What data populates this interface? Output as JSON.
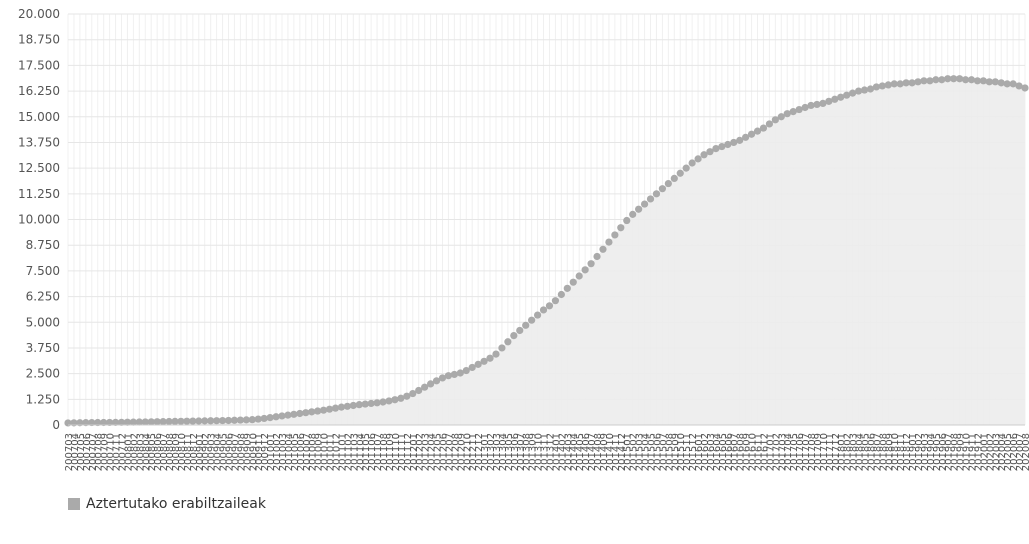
{
  "chart_data": {
    "type": "area",
    "categories": [
      "200703",
      "200704",
      "200705",
      "200706",
      "200707",
      "200708",
      "200709",
      "200710",
      "200711",
      "200712",
      "200801",
      "200802",
      "200803",
      "200804",
      "200805",
      "200806",
      "200807",
      "200808",
      "200809",
      "200810",
      "200811",
      "200812",
      "200901",
      "200902",
      "200903",
      "200904",
      "200905",
      "200906",
      "200907",
      "200908",
      "200909",
      "200910",
      "200911",
      "200912",
      "201001",
      "201002",
      "201003",
      "201004",
      "201005",
      "201006",
      "201007",
      "201008",
      "201009",
      "201010",
      "201011",
      "201012",
      "201101",
      "201102",
      "201103",
      "201104",
      "201105",
      "201106",
      "201107",
      "201108",
      "201109",
      "201110",
      "201111",
      "201112",
      "201201",
      "201202",
      "201203",
      "201204",
      "201205",
      "201206",
      "201207",
      "201208",
      "201209",
      "201210",
      "201211",
      "201212",
      "201301",
      "201302",
      "201303",
      "201304",
      "201305",
      "201306",
      "201307",
      "201308",
      "201309",
      "201310",
      "201311",
      "201312",
      "201401",
      "201402",
      "201403",
      "201404",
      "201405",
      "201406",
      "201407",
      "201408",
      "201409",
      "201410",
      "201411",
      "201412",
      "201501",
      "201502",
      "201503",
      "201504",
      "201505",
      "201506",
      "201507",
      "201508",
      "201509",
      "201510",
      "201511",
      "201512",
      "201601",
      "201602",
      "201603",
      "201604",
      "201605",
      "201606",
      "201607",
      "201608",
      "201609",
      "201610",
      "201611",
      "201612",
      "201701",
      "201702",
      "201703",
      "201704",
      "201705",
      "201706",
      "201707",
      "201708",
      "201709",
      "201710",
      "201711",
      "201712",
      "201801",
      "201802",
      "201803",
      "201804",
      "201805",
      "201806",
      "201807",
      "201808",
      "201809",
      "201810",
      "201811",
      "201812",
      "201901",
      "201902",
      "201903",
      "201904",
      "201905",
      "201906",
      "201907",
      "201908",
      "201909",
      "201910",
      "201911",
      "201912",
      "202001",
      "202002",
      "202003",
      "202004",
      "202005",
      "202006",
      "202007",
      "202008"
    ],
    "series": [
      {
        "name": "Aztertutako erabiltzaileak",
        "color": "#aaaaaa",
        "values": [
          100,
          105,
          110,
          115,
          118,
          120,
          122,
          125,
          128,
          130,
          135,
          140,
          145,
          150,
          155,
          160,
          165,
          170,
          175,
          180,
          185,
          190,
          195,
          200,
          205,
          210,
          215,
          220,
          230,
          240,
          250,
          260,
          290,
          320,
          360,
          400,
          440,
          480,
          520,
          560,
          600,
          640,
          680,
          720,
          770,
          820,
          870,
          910,
          950,
          990,
          1020,
          1050,
          1080,
          1120,
          1170,
          1230,
          1300,
          1400,
          1530,
          1680,
          1840,
          2000,
          2150,
          2290,
          2400,
          2460,
          2530,
          2650,
          2800,
          2950,
          3100,
          3250,
          3450,
          3750,
          4050,
          4350,
          4600,
          4850,
          5100,
          5350,
          5600,
          5800,
          6050,
          6350,
          6650,
          6950,
          7250,
          7550,
          7850,
          8200,
          8550,
          8900,
          9250,
          9600,
          9950,
          10250,
          10500,
          10750,
          11000,
          11250,
          11500,
          11750,
          12000,
          12250,
          12500,
          12750,
          12950,
          13150,
          13300,
          13450,
          13550,
          13650,
          13750,
          13850,
          14000,
          14150,
          14300,
          14450,
          14650,
          14850,
          15000,
          15150,
          15250,
          15350,
          15450,
          15550,
          15600,
          15650,
          15750,
          15850,
          15950,
          16050,
          16150,
          16250,
          16300,
          16350,
          16450,
          16500,
          16550,
          16600,
          16600,
          16650,
          16650,
          16700,
          16750,
          16750,
          16800,
          16800,
          16850,
          16850,
          16850,
          16800,
          16800,
          16750,
          16750,
          16700,
          16700,
          16650,
          16600,
          16600,
          16500,
          16400
        ]
      }
    ],
    "ylim": [
      0,
      20000
    ],
    "yticks": [
      0,
      {
        "value": 1250,
        "label": "1.250"
      },
      {
        "value": 2500,
        "label": "2.500"
      },
      {
        "value": 3750,
        "label": "3.750"
      },
      {
        "value": 5000,
        "label": "5.000"
      },
      {
        "value": 6250,
        "label": "6.250"
      },
      {
        "value": 7500,
        "label": "7.500"
      },
      {
        "value": 8750,
        "label": "8.750"
      },
      {
        "value": 10000,
        "label": "10.000"
      },
      {
        "value": 11250,
        "label": "11.250"
      },
      {
        "value": 12500,
        "label": "12.500"
      },
      {
        "value": 13750,
        "label": "13.750"
      },
      {
        "value": 15000,
        "label": "15.000"
      },
      {
        "value": 16250,
        "label": "16.250"
      },
      {
        "value": 17500,
        "label": "17.500"
      },
      {
        "value": 18750,
        "label": "18.750"
      },
      {
        "value": 20000,
        "label": "20.000"
      }
    ],
    "grid": true,
    "area_fill": "#ececec"
  }
}
